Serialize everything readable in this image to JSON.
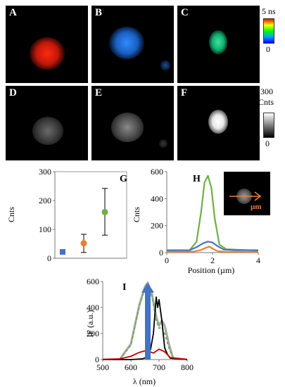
{
  "panels": {
    "A": "A",
    "B": "B",
    "C": "C",
    "D": "D",
    "E": "E",
    "F": "F"
  },
  "colorbar_lifetime": {
    "max": "5 ns",
    "min": "0"
  },
  "colorbar_counts": {
    "max": "300",
    "unit": "Cnts",
    "min": "0"
  },
  "chart_data": [
    {
      "panel": "G",
      "type": "scatter",
      "ylabel": "Cnts",
      "ylim": [
        0,
        300
      ],
      "yticks": [
        "0",
        "100",
        "200",
        "300"
      ],
      "points": [
        {
          "x": 1,
          "y": 22,
          "err_lo": 15,
          "err_hi": 30,
          "color": "#4472c4"
        },
        {
          "x": 2,
          "y": 52,
          "err_lo": 20,
          "err_hi": 83,
          "color": "#ed7d31"
        },
        {
          "x": 3,
          "y": 160,
          "err_lo": 80,
          "err_hi": 242,
          "color": "#70ad47"
        }
      ]
    },
    {
      "panel": "H",
      "type": "line",
      "xlabel": "Position (µm)",
      "ylabel": "Cnts",
      "xlim": [
        0,
        4
      ],
      "ylim": [
        0,
        600
      ],
      "xticks": [
        "0",
        "2",
        "4"
      ],
      "yticks": [
        "0",
        "200",
        "400",
        "600"
      ],
      "inset_label": "µm",
      "series": [
        {
          "color": "#70ad47",
          "x": [
            0,
            1,
            1.3,
            1.5,
            1.65,
            1.8,
            1.95,
            2.1,
            2.3,
            2.6,
            4
          ],
          "y": [
            15,
            18,
            80,
            300,
            520,
            570,
            480,
            250,
            60,
            25,
            15
          ]
        },
        {
          "color": "#4472c4",
          "x": [
            0,
            1,
            1.3,
            1.6,
            1.8,
            2.0,
            2.2,
            2.5,
            3,
            4
          ],
          "y": [
            18,
            18,
            40,
            70,
            82,
            75,
            50,
            22,
            18,
            18
          ]
        },
        {
          "color": "#ed7d31",
          "x": [
            0,
            1.2,
            1.5,
            1.7,
            1.85,
            2.0,
            2.2,
            2.5,
            4
          ],
          "y": [
            5,
            8,
            20,
            35,
            45,
            30,
            12,
            6,
            5
          ]
        }
      ]
    },
    {
      "panel": "I",
      "type": "line",
      "xlabel": "λ (nm)",
      "ylabel": "IF (a.u.)",
      "xlim": [
        500,
        800
      ],
      "ylim": [
        0,
        600
      ],
      "xticks": [
        "500",
        "600",
        "700",
        "800"
      ],
      "yticks": [
        "0",
        "200",
        "400",
        "600"
      ],
      "arrow": {
        "x": 660,
        "y_from": 0,
        "y_to": 590,
        "color": "#4472c4"
      },
      "series": [
        {
          "color": "#a6a6a6",
          "x": [
            560,
            600,
            630,
            650,
            660,
            675,
            690,
            700,
            710,
            720,
            735,
            750
          ],
          "y": [
            0,
            120,
            420,
            560,
            590,
            500,
            330,
            260,
            300,
            260,
            120,
            10
          ]
        },
        {
          "color": "#70ad47",
          "dashed": true,
          "x": [
            560,
            600,
            630,
            650,
            660,
            675,
            690,
            700,
            710,
            720,
            735,
            750
          ],
          "y": [
            0,
            110,
            410,
            550,
            585,
            480,
            300,
            240,
            250,
            200,
            90,
            5
          ]
        },
        {
          "color": "#000000",
          "x": [
            500,
            600,
            640,
            660,
            670,
            680,
            690,
            695,
            700,
            705,
            710,
            720,
            730,
            740,
            800
          ],
          "y": [
            0,
            0,
            5,
            20,
            80,
            200,
            480,
            400,
            460,
            380,
            300,
            90,
            40,
            10,
            0
          ]
        },
        {
          "color": "#c00000",
          "x": [
            500,
            560,
            600,
            630,
            655,
            680,
            700,
            720,
            740,
            800
          ],
          "y": [
            2,
            5,
            25,
            55,
            70,
            50,
            80,
            60,
            15,
            2
          ]
        }
      ]
    }
  ]
}
